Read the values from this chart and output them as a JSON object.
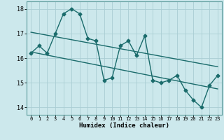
{
  "xlabel": "Humidex (Indice chaleur)",
  "ylabel": "",
  "bg_color": "#cce8ec",
  "grid_color": "#aacdd4",
  "line_color": "#1a6b6b",
  "xlim": [
    -0.5,
    23.5
  ],
  "ylim": [
    13.7,
    18.3
  ],
  "yticks": [
    14,
    15,
    16,
    17,
    18
  ],
  "xticks": [
    0,
    1,
    2,
    3,
    4,
    5,
    6,
    7,
    8,
    9,
    10,
    11,
    12,
    13,
    14,
    15,
    16,
    17,
    18,
    19,
    20,
    21,
    22,
    23
  ],
  "data_x": [
    0,
    1,
    2,
    3,
    4,
    5,
    6,
    7,
    8,
    9,
    10,
    11,
    12,
    13,
    14,
    15,
    16,
    17,
    18,
    19,
    20,
    21,
    22,
    23
  ],
  "data_y": [
    16.2,
    16.5,
    16.2,
    17.0,
    17.8,
    18.0,
    17.8,
    16.8,
    16.7,
    15.1,
    15.2,
    16.5,
    16.7,
    16.1,
    16.9,
    15.1,
    15.0,
    15.1,
    15.3,
    14.7,
    14.3,
    14.0,
    14.9,
    15.3
  ],
  "trend1_x": [
    0,
    23
  ],
  "trend1_y": [
    17.05,
    15.65
  ],
  "trend2_x": [
    0,
    23
  ],
  "trend2_y": [
    16.25,
    14.75
  ]
}
